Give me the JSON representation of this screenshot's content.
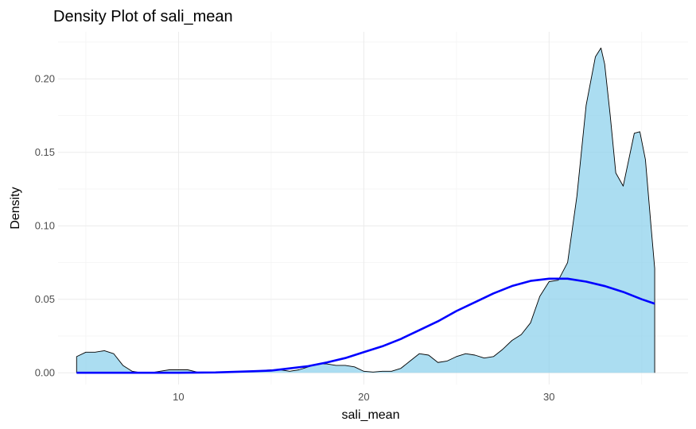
{
  "chart_data": {
    "type": "area",
    "title": "Density Plot of sali_mean",
    "xlabel": "sali_mean",
    "ylabel": "Density",
    "xlim": [
      3.5,
      37.5
    ],
    "ylim": [
      -0.008,
      0.232
    ],
    "x_ticks": [
      10,
      20,
      30
    ],
    "y_ticks": [
      0.0,
      0.05,
      0.1,
      0.15,
      0.2
    ],
    "x_tick_labels": [
      "10",
      "20",
      "30"
    ],
    "y_tick_labels": [
      "0.00",
      "0.05",
      "0.10",
      "0.15",
      "0.20"
    ],
    "grid": true,
    "legend": "none",
    "series": [
      {
        "kind": "density",
        "fill": "#87CEEB",
        "stroke": "#000000",
        "x": [
          4.5,
          5.0,
          5.5,
          6.0,
          6.5,
          7.0,
          7.5,
          8.0,
          8.5,
          9.0,
          9.5,
          10.0,
          10.5,
          11.0,
          11.5,
          12.0,
          13.0,
          14.0,
          15.0,
          15.5,
          16.0,
          16.5,
          17.0,
          17.5,
          18.0,
          18.5,
          19.0,
          19.5,
          20.0,
          20.5,
          21.0,
          21.5,
          22.0,
          22.5,
          23.0,
          23.5,
          24.0,
          24.5,
          25.0,
          25.5,
          26.0,
          26.5,
          27.0,
          27.5,
          28.0,
          28.5,
          29.0,
          29.5,
          30.0,
          30.5,
          31.0,
          31.5,
          32.0,
          32.5,
          32.8,
          33.0,
          33.3,
          33.6,
          34.0,
          34.3,
          34.6,
          34.9,
          35.2,
          35.5,
          35.7
        ],
        "y": [
          0.011,
          0.014,
          0.014,
          0.015,
          0.013,
          0.005,
          0.001,
          0.0,
          0.0,
          0.001,
          0.002,
          0.002,
          0.002,
          0.0005,
          0.0003,
          0.0003,
          0.0005,
          0.001,
          0.002,
          0.002,
          0.001,
          0.002,
          0.004,
          0.006,
          0.006,
          0.005,
          0.005,
          0.004,
          0.001,
          0.0005,
          0.001,
          0.001,
          0.003,
          0.008,
          0.013,
          0.012,
          0.007,
          0.008,
          0.011,
          0.013,
          0.012,
          0.01,
          0.011,
          0.016,
          0.022,
          0.026,
          0.034,
          0.052,
          0.062,
          0.063,
          0.075,
          0.12,
          0.182,
          0.215,
          0.221,
          0.21,
          0.175,
          0.136,
          0.127,
          0.145,
          0.163,
          0.164,
          0.145,
          0.1,
          0.071
        ]
      },
      {
        "kind": "normal-curve",
        "stroke": "#0000FF",
        "x": [
          4.5,
          6.0,
          8.0,
          10.0,
          12.0,
          14.0,
          15.0,
          16.0,
          17.0,
          18.0,
          19.0,
          20.0,
          21.0,
          22.0,
          23.0,
          24.0,
          25.0,
          26.0,
          27.0,
          28.0,
          29.0,
          30.0,
          31.0,
          32.0,
          33.0,
          34.0,
          35.0,
          35.7
        ],
        "y": [
          0.0,
          0.0,
          0.0,
          0.0,
          0.0002,
          0.001,
          0.0015,
          0.003,
          0.0045,
          0.007,
          0.01,
          0.014,
          0.018,
          0.023,
          0.029,
          0.035,
          0.042,
          0.048,
          0.054,
          0.059,
          0.0625,
          0.064,
          0.064,
          0.062,
          0.059,
          0.055,
          0.05,
          0.047
        ]
      }
    ]
  }
}
